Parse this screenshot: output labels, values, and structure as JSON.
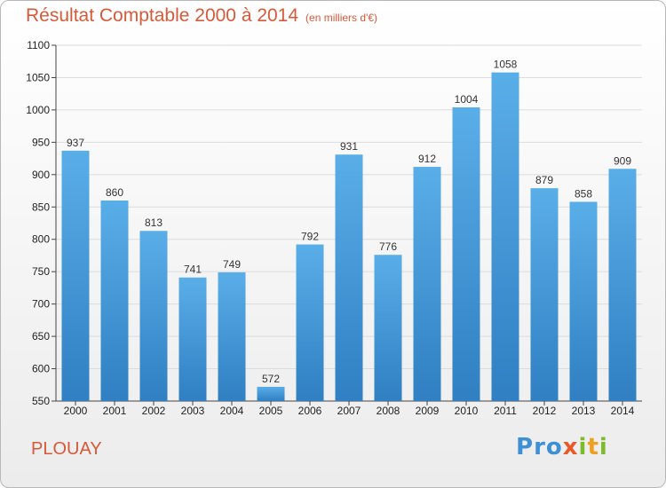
{
  "header": {
    "title": "Résultat Comptable 2000 à 2014",
    "unit": "(en milliers d'€)"
  },
  "footer": {
    "place": "PLOUAY",
    "logo": "Proxiti",
    "logo_letters": [
      {
        "ch": "P",
        "color": "#3d8fd6"
      },
      {
        "ch": "r",
        "color": "#3d8fd6"
      },
      {
        "ch": "o",
        "color": "#3d8fd6"
      },
      {
        "ch": "x",
        "color": "#e85a2a"
      },
      {
        "ch": "i",
        "color": "#7dbb2a"
      },
      {
        "ch": "t",
        "color": "#f0a020"
      },
      {
        "ch": "i",
        "color": "#7dbb2a"
      }
    ]
  },
  "colors": {
    "bar_top": "#5aaee8",
    "bar_bottom": "#2f7fc2",
    "title": "#d65a3a",
    "grid": "#dcdcdc"
  },
  "chart_data": {
    "type": "bar",
    "title": "Résultat Comptable 2000 à 2014",
    "subtitle": "(en milliers d'€)",
    "categories": [
      "2000",
      "2001",
      "2002",
      "2003",
      "2004",
      "2005",
      "2006",
      "2007",
      "2008",
      "2009",
      "2010",
      "2011",
      "2012",
      "2013",
      "2014"
    ],
    "values": [
      937,
      860,
      813,
      741,
      749,
      572,
      792,
      931,
      776,
      912,
      1004,
      1058,
      879,
      858,
      909
    ],
    "ylim": [
      550,
      1100
    ],
    "yticks": [
      550,
      600,
      650,
      700,
      750,
      800,
      850,
      900,
      950,
      1000,
      1050,
      1100
    ],
    "grid": true,
    "xlabel": "",
    "ylabel": ""
  }
}
